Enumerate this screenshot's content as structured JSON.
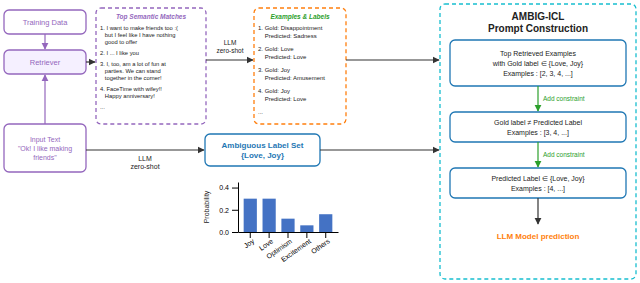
{
  "chart_data": {
    "type": "bar",
    "title": "AMBIG-ICL\nPrompt Construction",
    "categories": [
      "Joy",
      "Love",
      "Optimism",
      "Excitement",
      "Others"
    ],
    "values": [
      0.3,
      0.3,
      0.12,
      0.06,
      0.16
    ],
    "color": "#4472C4",
    "ylabel": "Probability",
    "ylim": [
      0,
      0.45
    ],
    "yticks": [
      {
        "value": 0,
        "label": "0.0"
      },
      0.2,
      0.4
    ],
    "annotations": [
      "Input Text\n\"Ok! I like making\nfriends\"",
      "Retriever",
      "Training Data",
      "LLM\nzero-shot",
      "Ambiguous Label Set\n{Love, Joy}",
      "Top Semantic Matches",
      "1. I want to make friends too :(\n   but I feel like I have nothing\n   good to offer",
      "2. I ... I like you",
      "3. I, too, am a lot of fun at\n   parties. We can stand\n   together in the corner!",
      "4. FaceTime with wifey!!\n   Happy anniversary!",
      "...",
      "Examples & Labels",
      "1. Gold: Disappointment\n    Predicted: Sadness",
      "2. Gold: Love\n    Predicted: Love",
      "3. Gold: Joy\n    Predicted: Amusement",
      "4. Gold: Joy\n    Predicted: Love",
      "...",
      "LLM\nzero-shot",
      "Top Retrieved Examples\nwith Gold label ∈ {Love, Joy}\nExamples : [2, 3, 4, ...]",
      "Add constraint",
      "Gold label ≠ Predicted Label\nExamples : [3, 4, ...]",
      "Add constraint",
      "Predicted Label ∈ {Love, Joy}\nExamples : [4, ...]",
      "LLM Model prediction"
    ]
  }
}
